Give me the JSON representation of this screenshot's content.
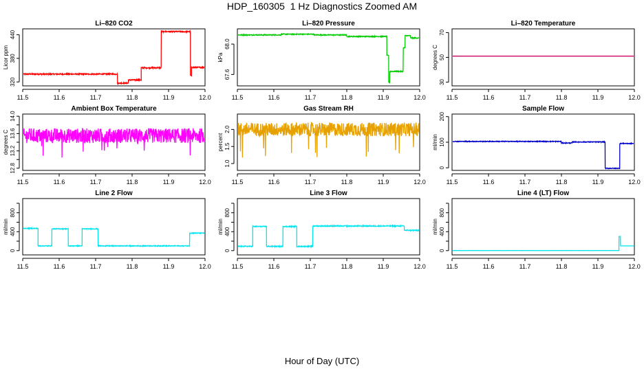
{
  "title": "HDP_160305  1 Hz Diagnostics Zoomed AM",
  "xlabel": "Hour of Day (UTC)",
  "chart_data": [
    {
      "type": "line",
      "title": "Li–820 CO2",
      "ylabel": "Licor ppm",
      "color": "#ff0000",
      "xlim": [
        11.5,
        12.0
      ],
      "xticks": [
        11.5,
        11.6,
        11.7,
        11.8,
        11.9,
        12.0
      ],
      "xtick_labels": [
        "11.5",
        "11.6",
        "11.7",
        "11.8",
        "11.9",
        "12.0"
      ],
      "ylim": [
        310,
        455
      ],
      "yticks": [
        320,
        380,
        440
      ],
      "ytick_labels": [
        "320",
        "380",
        "440"
      ],
      "series": [
        {
          "noise": 1.5,
          "segments": [
            [
              11.5,
              11.76,
              340
            ],
            [
              11.76,
              11.79,
              317
            ],
            [
              11.79,
              11.825,
              325
            ],
            [
              11.825,
              11.88,
              356
            ],
            [
              11.88,
              11.96,
              448
            ],
            [
              11.96,
              11.963,
              336
            ],
            [
              11.963,
              12.0,
              357
            ]
          ]
        }
      ]
    },
    {
      "type": "line",
      "title": "Li–820 Pressure",
      "ylabel": "kPa",
      "color": "#00cc00",
      "xlim": [
        11.5,
        12.0
      ],
      "xticks": [
        11.5,
        11.6,
        11.7,
        11.8,
        11.9,
        12.0
      ],
      "xtick_labels": [
        "11.5",
        "11.6",
        "11.7",
        "11.8",
        "11.9",
        "12.0"
      ],
      "ylim": [
        67.45,
        68.2
      ],
      "yticks": [
        67.6,
        68.0
      ],
      "ytick_labels": [
        "67.6",
        "68.0"
      ],
      "series": [
        {
          "noise": 0.006,
          "segments": [
            [
              11.5,
              11.62,
              68.12
            ],
            [
              11.62,
              11.71,
              68.13
            ],
            [
              11.71,
              11.8,
              68.12
            ],
            [
              11.8,
              11.91,
              68.1
            ],
            [
              11.91,
              11.915,
              67.85
            ],
            [
              11.915,
              11.918,
              67.5
            ],
            [
              11.918,
              11.955,
              67.64
            ],
            [
              11.955,
              11.96,
              67.95
            ],
            [
              11.96,
              11.975,
              68.11
            ],
            [
              11.975,
              12.0,
              68.08
            ]
          ]
        }
      ]
    },
    {
      "type": "line",
      "title": "Li–820 Temperature",
      "ylabel": "degrees C",
      "color": "#cc0066",
      "xlim": [
        11.5,
        12.0
      ],
      "xticks": [
        11.5,
        11.6,
        11.7,
        11.8,
        11.9,
        12.0
      ],
      "xtick_labels": [
        "11.5",
        "11.6",
        "11.7",
        "11.8",
        "11.9",
        "12.0"
      ],
      "ylim": [
        27,
        73
      ],
      "yticks": [
        30,
        50,
        70
      ],
      "ytick_labels": [
        "30",
        "50",
        "70"
      ],
      "series": [
        {
          "noise": 0,
          "segments": [
            [
              11.5,
              12.0,
              51
            ]
          ]
        }
      ]
    },
    {
      "type": "line",
      "title": "Ambient Box Temperature",
      "ylabel": "degrees C",
      "color": "#ff00ff",
      "xlim": [
        11.5,
        12.0
      ],
      "xticks": [
        11.5,
        11.6,
        11.7,
        11.8,
        11.9,
        12.0
      ],
      "xtick_labels": [
        "11.5",
        "11.6",
        "11.7",
        "11.8",
        "11.9",
        "12.0"
      ],
      "ylim": [
        12.75,
        14.05
      ],
      "yticks": [
        12.8,
        13.0,
        13.2,
        13.4,
        13.6,
        13.8,
        14.0
      ],
      "ytick_labels": [
        "12.8",
        "",
        "13.2",
        "",
        "13.6",
        "",
        "14.0"
      ],
      "series": [
        {
          "noise": 0.17,
          "segments": [
            [
              11.5,
              12.0,
              13.55
            ]
          ]
        }
      ]
    },
    {
      "type": "line",
      "title": "Gas Stream RH",
      "ylabel": "percent",
      "color": "#e6a000",
      "xlim": [
        11.5,
        12.0
      ],
      "xticks": [
        11.5,
        11.6,
        11.7,
        11.8,
        11.9,
        12.0
      ],
      "xtick_labels": [
        "11.5",
        "11.6",
        "11.7",
        "11.8",
        "11.9",
        "12.0"
      ],
      "ylim": [
        0.8,
        2.45
      ],
      "yticks": [
        1.0,
        1.5,
        2.0
      ],
      "ytick_labels": [
        "1.0",
        "1.5",
        "2.0"
      ],
      "series": [
        {
          "noise": 0.2,
          "segments": [
            [
              11.5,
              12.0,
              2.0
            ]
          ]
        }
      ]
    },
    {
      "type": "line",
      "title": "Sample Flow",
      "ylabel": "ml/min",
      "color": "#0000cc",
      "xlim": [
        11.5,
        12.0
      ],
      "xticks": [
        11.5,
        11.6,
        11.7,
        11.8,
        11.9,
        12.0
      ],
      "xtick_labels": [
        "11.5",
        "11.6",
        "11.7",
        "11.8",
        "11.9",
        "12.0"
      ],
      "ylim": [
        -10,
        210
      ],
      "yticks": [
        0,
        100,
        200
      ],
      "ytick_labels": [
        "0",
        "100",
        "200"
      ],
      "series": [
        {
          "noise": 1.5,
          "segments": [
            [
              11.5,
              11.8,
              103
            ],
            [
              11.8,
              11.83,
              97
            ],
            [
              11.83,
              11.92,
              101
            ],
            [
              11.92,
              11.96,
              -2
            ],
            [
              11.96,
              12.0,
              95
            ]
          ]
        }
      ]
    },
    {
      "type": "line",
      "title": "Line 2 Flow",
      "ylabel": "ml/min",
      "color": "#00e5ee",
      "xlim": [
        11.5,
        12.0
      ],
      "xticks": [
        11.5,
        11.6,
        11.7,
        11.8,
        11.9,
        12.0
      ],
      "xtick_labels": [
        "11.5",
        "11.6",
        "11.7",
        "11.8",
        "11.9",
        "12.0"
      ],
      "ylim": [
        -90,
        1100
      ],
      "yticks": [
        0,
        200,
        400,
        600,
        800,
        1000
      ],
      "ytick_labels": [
        "0",
        "",
        "400",
        "",
        "800",
        ""
      ],
      "series": [
        {
          "noise": 8,
          "segments": [
            [
              11.5,
              11.542,
              470
            ],
            [
              11.542,
              11.58,
              100
            ],
            [
              11.58,
              11.625,
              460
            ],
            [
              11.625,
              11.663,
              100
            ],
            [
              11.663,
              11.707,
              460
            ],
            [
              11.707,
              11.958,
              100
            ],
            [
              11.958,
              12.0,
              370
            ]
          ]
        }
      ]
    },
    {
      "type": "line",
      "title": "Line 3 Flow",
      "ylabel": "ml/min",
      "color": "#00e5ee",
      "xlim": [
        11.5,
        12.0
      ],
      "xticks": [
        11.5,
        11.6,
        11.7,
        11.8,
        11.9,
        12.0
      ],
      "xtick_labels": [
        "11.5",
        "11.6",
        "11.7",
        "11.8",
        "11.9",
        "12.0"
      ],
      "ylim": [
        -90,
        1100
      ],
      "yticks": [
        0,
        200,
        400,
        600,
        800,
        1000
      ],
      "ytick_labels": [
        "0",
        "",
        "400",
        "",
        "800",
        ""
      ],
      "series": [
        {
          "noise": 10,
          "segments": [
            [
              11.5,
              11.542,
              90
            ],
            [
              11.542,
              11.58,
              510
            ],
            [
              11.58,
              11.625,
              90
            ],
            [
              11.625,
              11.663,
              510
            ],
            [
              11.663,
              11.707,
              90
            ],
            [
              11.707,
              11.958,
              520
            ],
            [
              11.958,
              12.0,
              430
            ]
          ]
        }
      ]
    },
    {
      "type": "line",
      "title": "Line 4 (LT) Flow",
      "ylabel": "ml/min",
      "color": "#00e5ee",
      "xlim": [
        11.5,
        12.0
      ],
      "xticks": [
        11.5,
        11.6,
        11.7,
        11.8,
        11.9,
        12.0
      ],
      "xtick_labels": [
        "11.5",
        "11.6",
        "11.7",
        "11.8",
        "11.9",
        "12.0"
      ],
      "ylim": [
        -90,
        1100
      ],
      "yticks": [
        0,
        200,
        400,
        600,
        800,
        1000
      ],
      "ytick_labels": [
        "0",
        "",
        "400",
        "",
        "800",
        ""
      ],
      "series": [
        {
          "noise": 1,
          "segments": [
            [
              11.5,
              11.958,
              2
            ],
            [
              11.958,
              11.962,
              300
            ],
            [
              11.962,
              12.0,
              100
            ]
          ]
        }
      ]
    }
  ]
}
